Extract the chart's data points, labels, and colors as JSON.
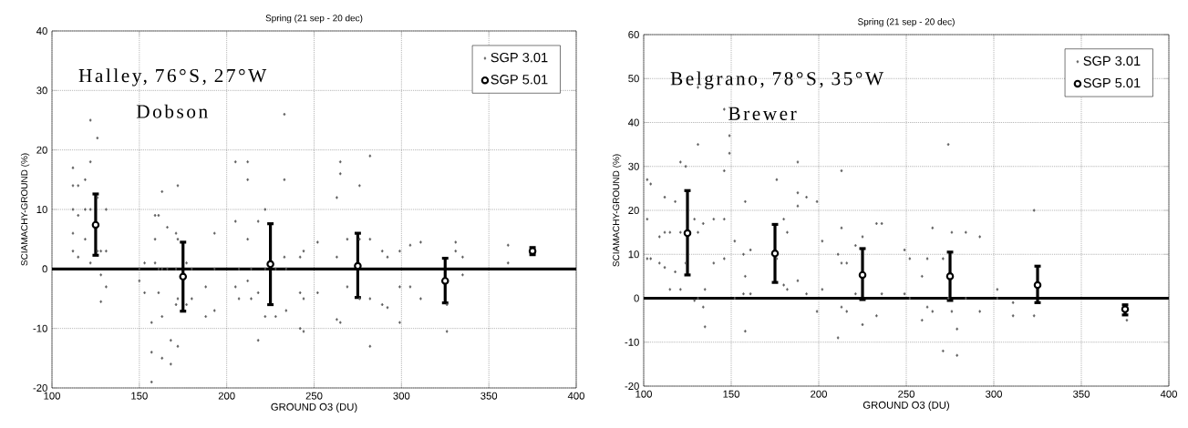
{
  "chart_data": [
    {
      "type": "scatter",
      "title": "Spring (21 sep - 20 dec)",
      "xlabel": "GROUND O3 (DU)",
      "ylabel": "SCIAMACHY-GROUND (%)",
      "annotations": [
        "Halley, 76°S, 27°W",
        "Dobson"
      ],
      "xlim": [
        100,
        400
      ],
      "ylim": [
        -20,
        40
      ],
      "xticks": [
        100,
        150,
        200,
        250,
        300,
        350,
        400
      ],
      "yticks": [
        -20,
        -10,
        0,
        10,
        20,
        30,
        40
      ],
      "grid": true,
      "legend": "top right",
      "ref_lines": [
        {
          "axis": "y",
          "value": 0,
          "color": "#000000"
        }
      ],
      "series": [
        {
          "name": "SGP 3.01",
          "color": "#5a5a5a",
          "marker": "diamond",
          "x": [
            112,
            112,
            112,
            112,
            112,
            115,
            115,
            115,
            119,
            119,
            119,
            122,
            122,
            122,
            122,
            126,
            126,
            126,
            128,
            128,
            128,
            131,
            131,
            131,
            150,
            150,
            153,
            153,
            157,
            157,
            157,
            159,
            159,
            159,
            161,
            161,
            161,
            163,
            163,
            163,
            163,
            166,
            166,
            168,
            168,
            171,
            171,
            171,
            172,
            172,
            172,
            172,
            177,
            177,
            180,
            180,
            188,
            188,
            193,
            193,
            193,
            205,
            205,
            205,
            207,
            207,
            212,
            212,
            212,
            212,
            214,
            214,
            218,
            218,
            218,
            222,
            222,
            222,
            228,
            228,
            233,
            233,
            233,
            234,
            234,
            242,
            242,
            242,
            244,
            244,
            244,
            252,
            252,
            263,
            263,
            263,
            265,
            265,
            265,
            269,
            269,
            276,
            276,
            276,
            282,
            282,
            282,
            282,
            289,
            289,
            292,
            292,
            299,
            299,
            299,
            305,
            305,
            311,
            311,
            326,
            326,
            331,
            331,
            335,
            335,
            361,
            361
          ],
          "values": [
            17,
            14,
            10,
            6,
            3,
            14,
            9,
            2,
            15,
            10,
            5,
            25,
            18,
            10,
            1,
            22,
            12,
            3,
            3,
            -1,
            -5.5,
            10,
            3,
            -3,
            0,
            -2,
            1,
            -4,
            -9,
            -14,
            -19,
            9,
            5,
            1,
            9,
            0,
            -4,
            13,
            0,
            -8,
            -15,
            7,
            0,
            -12,
            -16,
            6,
            0,
            -6,
            14,
            5,
            -5,
            -13,
            1,
            -6,
            0,
            -5,
            -3,
            -8,
            6,
            0,
            -7,
            18,
            8,
            -3,
            0,
            -5,
            18,
            15,
            5,
            -2,
            0,
            -5,
            8,
            -4,
            -12,
            10,
            0,
            -8,
            0,
            -8,
            26,
            15,
            2,
            0,
            -7,
            2,
            -4,
            -10,
            3,
            -5,
            -10.5,
            4.5,
            -4,
            12,
            2,
            -8.5,
            18,
            16,
            -9,
            5,
            -3,
            14,
            5,
            -5,
            19,
            5,
            -5,
            -13,
            3,
            -6,
            2,
            -6.5,
            3,
            -3,
            -9,
            4,
            -3,
            4.5,
            -5,
            -6,
            -10.5,
            4.5,
            3,
            2,
            -1,
            4,
            1
          ]
        },
        {
          "name": "SGP 5.01",
          "color": "#000000",
          "marker": "circle",
          "x": [
            125,
            175,
            225,
            275,
            325,
            375
          ],
          "values": [
            7.4,
            -1.3,
            0.8,
            0.5,
            -2,
            3
          ],
          "errors": [
            [
              2.3,
              12.6
            ],
            [
              -7.1,
              4.5
            ],
            [
              -6,
              7.6
            ],
            [
              -4.8,
              6
            ],
            [
              -5.7,
              1.8
            ],
            [
              2.4,
              3.6
            ]
          ]
        }
      ]
    },
    {
      "type": "scatter",
      "title": "Spring (21 sep - 20 dec)",
      "xlabel": "GROUND O3 (DU)",
      "ylabel": "SCIAMACHY-GROUND (%)",
      "annotations": [
        "Belgrano, 78°S, 35°W",
        "Brewer"
      ],
      "xlim": [
        100,
        400
      ],
      "ylim": [
        -20,
        60
      ],
      "xticks": [
        100,
        150,
        200,
        250,
        300,
        350,
        400
      ],
      "yticks": [
        -20,
        -10,
        0,
        10,
        20,
        30,
        40,
        50,
        60
      ],
      "grid": true,
      "legend": "top right",
      "ref_lines": [
        {
          "axis": "y",
          "value": 0,
          "color": "#000000"
        }
      ],
      "series": [
        {
          "name": "SGP 3.01",
          "color": "#5a5a5a",
          "marker": "diamond",
          "x": [
            102,
            102,
            102,
            104,
            104,
            109,
            109,
            112,
            112,
            112,
            115,
            115,
            118,
            118,
            121,
            121,
            121,
            124,
            124,
            129,
            129,
            131,
            131,
            131,
            131,
            134,
            134,
            135,
            135,
            140,
            140,
            146,
            146,
            146,
            146,
            149,
            149,
            152,
            152,
            157,
            157,
            158,
            158,
            158,
            161,
            161,
            176,
            176,
            180,
            180,
            182,
            182,
            188,
            188,
            188,
            188,
            193,
            193,
            199,
            199,
            202,
            202,
            211,
            211,
            213,
            213,
            213,
            213,
            216,
            216,
            221,
            221,
            225,
            225,
            233,
            233,
            236,
            236,
            249,
            249,
            252,
            252,
            259,
            259,
            262,
            262,
            265,
            265,
            271,
            271,
            274,
            274,
            276,
            276,
            279,
            279,
            284,
            284,
            292,
            292,
            302,
            302,
            311,
            311,
            323,
            323,
            376
          ],
          "values": [
            27,
            18,
            9,
            26,
            9,
            14,
            8,
            23,
            15,
            7,
            15,
            2,
            22,
            6,
            31,
            15,
            2,
            30,
            8,
            18,
            -0.5,
            48,
            35,
            15,
            0,
            17,
            -2,
            2,
            -6.5,
            18,
            8,
            43,
            29,
            18,
            9,
            37,
            33,
            13,
            0,
            10,
            1,
            22,
            5,
            -7.5,
            11,
            1,
            27,
            9,
            18,
            3,
            15,
            2,
            31,
            24,
            21,
            4,
            23,
            1,
            22,
            -3,
            13,
            2,
            10,
            -9,
            29,
            16,
            8,
            -2,
            8,
            -3,
            12,
            1,
            14,
            -6,
            17,
            -4,
            17,
            1,
            11,
            1,
            9,
            0,
            5,
            -5,
            9,
            -2,
            16,
            -3,
            9,
            -12,
            35,
            0,
            15,
            -3,
            -7,
            -13,
            15,
            0,
            14,
            -3,
            2,
            0,
            -1,
            -4,
            20,
            -4,
            -5
          ]
        },
        {
          "name": "SGP 5.01",
          "color": "#000000",
          "marker": "circle",
          "x": [
            125,
            175,
            225,
            275,
            325,
            375
          ],
          "values": [
            14.8,
            10.2,
            5.3,
            5,
            3,
            -2.5
          ],
          "errors": [
            [
              5.3,
              24.5
            ],
            [
              3.6,
              16.8
            ],
            [
              -0.3,
              11.3
            ],
            [
              -0.5,
              10.5
            ],
            [
              -1,
              7.3
            ],
            [
              -3.8,
              -1.5
            ]
          ]
        }
      ]
    }
  ]
}
